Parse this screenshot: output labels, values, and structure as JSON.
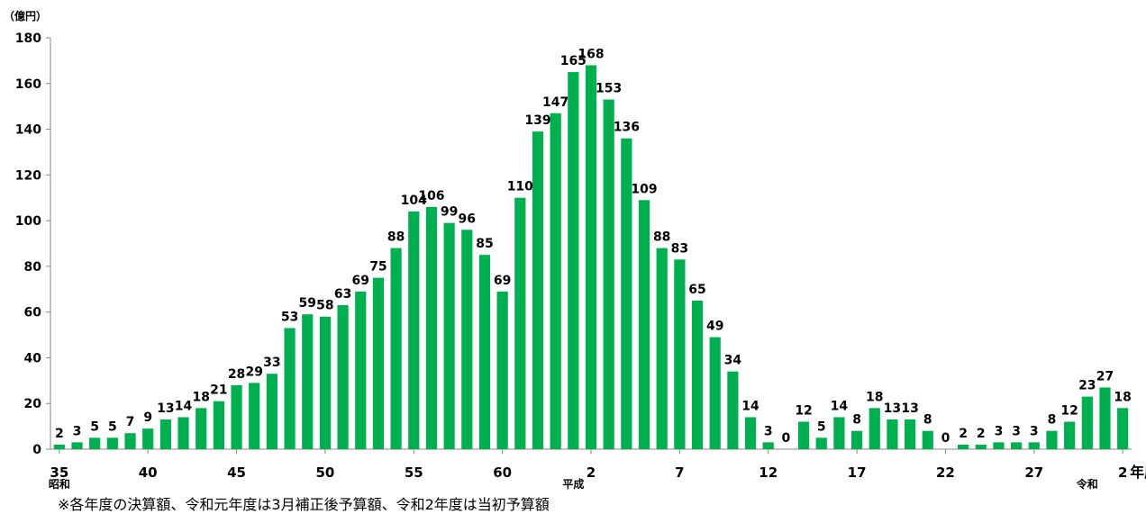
{
  "chart_data": {
    "type": "bar",
    "ylabel": "（億円）",
    "ylim": [
      0,
      180
    ],
    "yticks": [
      0,
      20,
      40,
      60,
      80,
      100,
      120,
      140,
      160,
      180
    ],
    "grid": false,
    "bar_color": "#00B050",
    "values": [
      2,
      3,
      5,
      5,
      7,
      9,
      13,
      14,
      18,
      21,
      28,
      29,
      33,
      53,
      59,
      58,
      63,
      69,
      75,
      88,
      104,
      106,
      99,
      96,
      85,
      69,
      110,
      139,
      147,
      165,
      168,
      153,
      136,
      109,
      88,
      83,
      65,
      49,
      34,
      14,
      3,
      0,
      12,
      5,
      14,
      8,
      18,
      13,
      13,
      8,
      0,
      2,
      2,
      3,
      3,
      3,
      8,
      12,
      23,
      27,
      18
    ],
    "x_tick_labels": [
      {
        "index": 0,
        "label": "35"
      },
      {
        "index": 5,
        "label": "40"
      },
      {
        "index": 10,
        "label": "45"
      },
      {
        "index": 15,
        "label": "50"
      },
      {
        "index": 20,
        "label": "55"
      },
      {
        "index": 25,
        "label": "60"
      },
      {
        "index": 30,
        "label": "2"
      },
      {
        "index": 35,
        "label": "7"
      },
      {
        "index": 40,
        "label": "12"
      },
      {
        "index": 45,
        "label": "17"
      },
      {
        "index": 50,
        "label": "22"
      },
      {
        "index": 55,
        "label": "27"
      },
      {
        "index": 60,
        "label": "2"
      }
    ],
    "era_labels": [
      {
        "index": 0,
        "label": "昭和"
      },
      {
        "index": 29,
        "label": "平成"
      },
      {
        "index": 58,
        "label": "令和"
      }
    ],
    "x_suffix": "年度"
  },
  "footnote": "※各年度の決算額、令和元年度は3月補正後予算額、令和2年度は当初予算額"
}
